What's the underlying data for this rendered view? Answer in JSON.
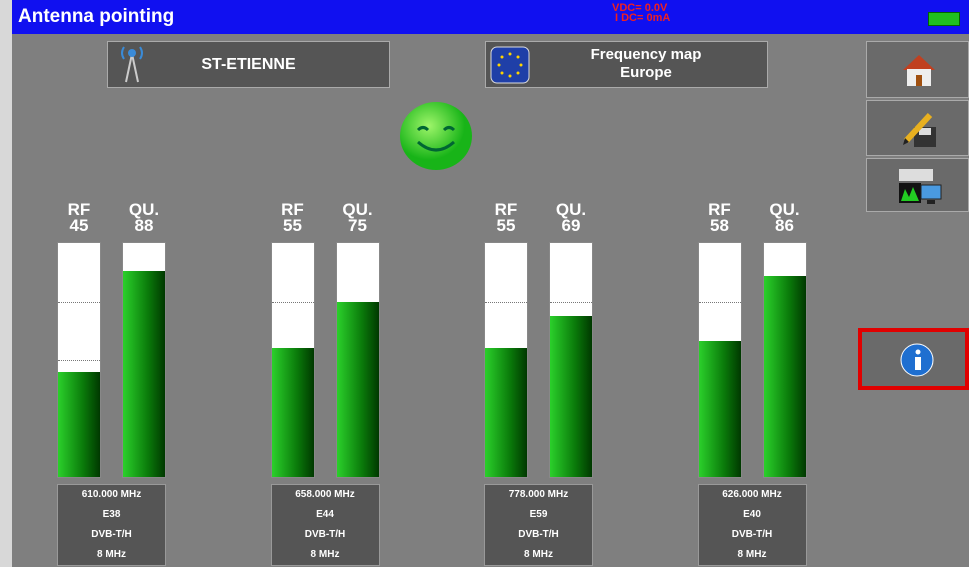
{
  "header": {
    "title": "Antenna pointing",
    "vdc": "VDC= 0.0V",
    "idc": "I DC= 0mA"
  },
  "location": "ST-ETIENNE",
  "frequency_map": [
    "Frequency map",
    "Europe"
  ],
  "channels": [
    {
      "rf_label": "RF",
      "rf": 45,
      "qu_label": "QU.",
      "qu": 88,
      "frequency": "610.000 MHz",
      "channel": "E38",
      "standard": "DVB-T/H",
      "bandwidth": "8 MHz"
    },
    {
      "rf_label": "RF",
      "rf": 55,
      "qu_label": "QU.",
      "qu": 75,
      "frequency": "658.000 MHz",
      "channel": "E44",
      "standard": "DVB-T/H",
      "bandwidth": "8 MHz"
    },
    {
      "rf_label": "RF",
      "rf": 55,
      "qu_label": "QU.",
      "qu": 69,
      "frequency": "778.000 MHz",
      "channel": "E59",
      "standard": "DVB-T/H",
      "bandwidth": "8 MHz"
    },
    {
      "rf_label": "RF",
      "rf": 58,
      "qu_label": "QU.",
      "qu": 86,
      "frequency": "626.000 MHz",
      "channel": "E40",
      "standard": "DVB-T/H",
      "bandwidth": "8 MHz"
    }
  ]
}
